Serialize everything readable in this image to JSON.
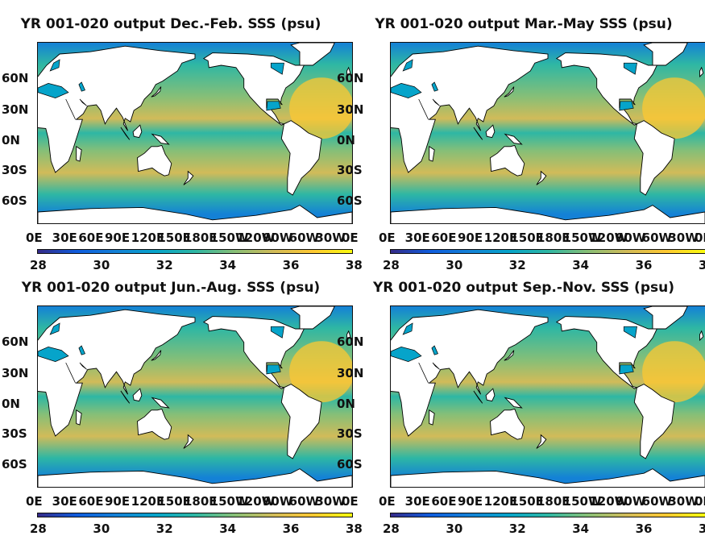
{
  "panels": [
    {
      "title": "YR 001-020 output Dec.-Feb. SSS (psu)",
      "season": "DJF"
    },
    {
      "title": "YR 001-020 output Mar.-May SSS (psu)",
      "season": "MAM"
    },
    {
      "title": "YR 001-020 output Jun.-Aug. SSS (psu)",
      "season": "JJA"
    },
    {
      "title": "YR 001-020 output Sep.-Nov. SSS (psu)",
      "season": "SON"
    }
  ],
  "lat_labels": [
    "60N",
    "30N",
    "0N",
    "30S",
    "60S"
  ],
  "lon_labels": [
    "0E",
    "30E",
    "60E",
    "90E",
    "120E",
    "150E",
    "180E",
    "150W",
    "120W",
    "90W",
    "60W",
    "30W",
    "0E"
  ],
  "colorbar": {
    "ticks": [
      "28",
      "30",
      "32",
      "34",
      "36",
      "38"
    ],
    "range": [
      28,
      38
    ],
    "colormap": "parula",
    "colors": [
      "#352a87",
      "#0f5cdd",
      "#1481d6",
      "#06a4ca",
      "#2eb7a4",
      "#87bf77",
      "#d1bb59",
      "#fec832",
      "#f9fb0e"
    ]
  },
  "map": {
    "land_color": "#ffffff",
    "coast_color": "#000000",
    "lat_range": [
      -80,
      80
    ],
    "lon_range": [
      0,
      360
    ]
  }
}
